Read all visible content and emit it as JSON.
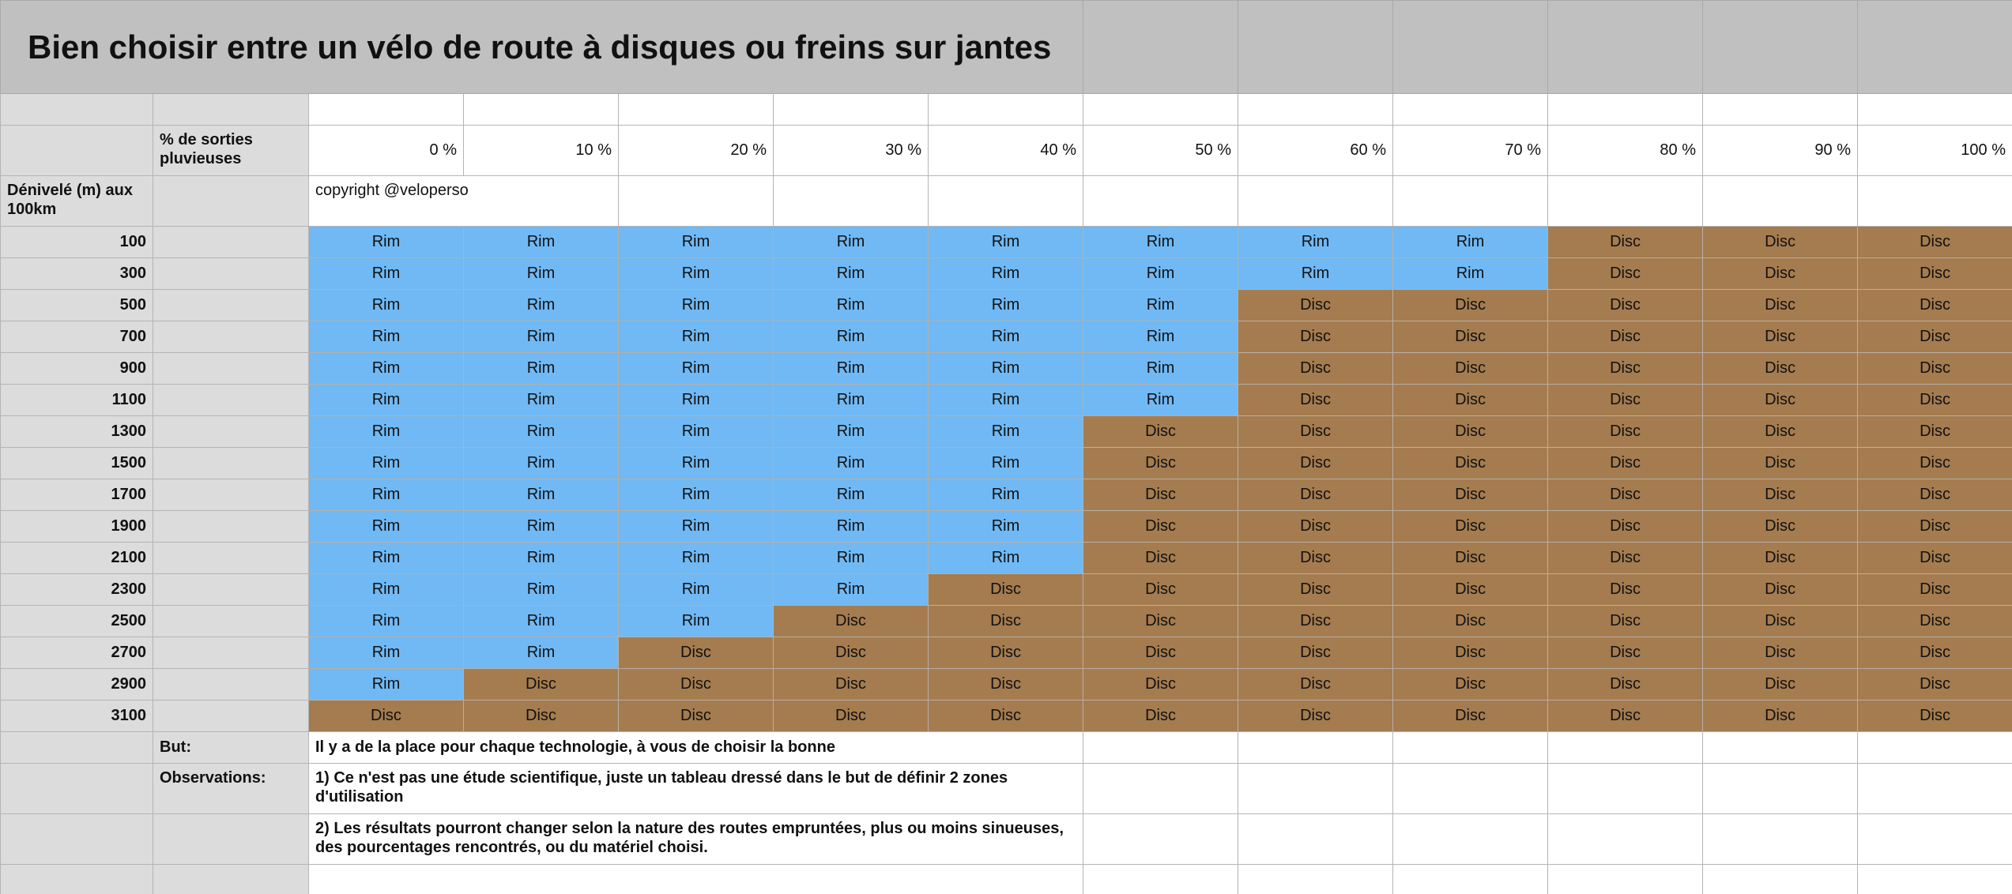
{
  "title": "Bien choisir entre un vélo de route à disques ou freins sur jantes",
  "header": {
    "rain_label": "% de sorties pluvieuses",
    "percentages": [
      "0 %",
      "10 %",
      "20 %",
      "30 %",
      "40 %",
      "50 %",
      "60 %",
      "70 %",
      "80 %",
      "90 %",
      "100 %"
    ]
  },
  "elevation_label": "Dénivelé (m) aux 100km",
  "copyright": "copyright @veloperso",
  "cell_colors": {
    "Rim": "#70b9f4",
    "Disc": "#a57c4f"
  },
  "rows": [
    {
      "elevation": 100,
      "cells": [
        "Rim",
        "Rim",
        "Rim",
        "Rim",
        "Rim",
        "Rim",
        "Rim",
        "Rim",
        "Disc",
        "Disc",
        "Disc"
      ]
    },
    {
      "elevation": 300,
      "cells": [
        "Rim",
        "Rim",
        "Rim",
        "Rim",
        "Rim",
        "Rim",
        "Rim",
        "Rim",
        "Disc",
        "Disc",
        "Disc"
      ]
    },
    {
      "elevation": 500,
      "cells": [
        "Rim",
        "Rim",
        "Rim",
        "Rim",
        "Rim",
        "Rim",
        "Disc",
        "Disc",
        "Disc",
        "Disc",
        "Disc"
      ]
    },
    {
      "elevation": 700,
      "cells": [
        "Rim",
        "Rim",
        "Rim",
        "Rim",
        "Rim",
        "Rim",
        "Disc",
        "Disc",
        "Disc",
        "Disc",
        "Disc"
      ]
    },
    {
      "elevation": 900,
      "cells": [
        "Rim",
        "Rim",
        "Rim",
        "Rim",
        "Rim",
        "Rim",
        "Disc",
        "Disc",
        "Disc",
        "Disc",
        "Disc"
      ]
    },
    {
      "elevation": 1100,
      "cells": [
        "Rim",
        "Rim",
        "Rim",
        "Rim",
        "Rim",
        "Rim",
        "Disc",
        "Disc",
        "Disc",
        "Disc",
        "Disc"
      ]
    },
    {
      "elevation": 1300,
      "cells": [
        "Rim",
        "Rim",
        "Rim",
        "Rim",
        "Rim",
        "Disc",
        "Disc",
        "Disc",
        "Disc",
        "Disc",
        "Disc"
      ]
    },
    {
      "elevation": 1500,
      "cells": [
        "Rim",
        "Rim",
        "Rim",
        "Rim",
        "Rim",
        "Disc",
        "Disc",
        "Disc",
        "Disc",
        "Disc",
        "Disc"
      ]
    },
    {
      "elevation": 1700,
      "cells": [
        "Rim",
        "Rim",
        "Rim",
        "Rim",
        "Rim",
        "Disc",
        "Disc",
        "Disc",
        "Disc",
        "Disc",
        "Disc"
      ]
    },
    {
      "elevation": 1900,
      "cells": [
        "Rim",
        "Rim",
        "Rim",
        "Rim",
        "Rim",
        "Disc",
        "Disc",
        "Disc",
        "Disc",
        "Disc",
        "Disc"
      ]
    },
    {
      "elevation": 2100,
      "cells": [
        "Rim",
        "Rim",
        "Rim",
        "Rim",
        "Rim",
        "Disc",
        "Disc",
        "Disc",
        "Disc",
        "Disc",
        "Disc"
      ]
    },
    {
      "elevation": 2300,
      "cells": [
        "Rim",
        "Rim",
        "Rim",
        "Rim",
        "Disc",
        "Disc",
        "Disc",
        "Disc",
        "Disc",
        "Disc",
        "Disc"
      ]
    },
    {
      "elevation": 2500,
      "cells": [
        "Rim",
        "Rim",
        "Rim",
        "Disc",
        "Disc",
        "Disc",
        "Disc",
        "Disc",
        "Disc",
        "Disc",
        "Disc"
      ]
    },
    {
      "elevation": 2700,
      "cells": [
        "Rim",
        "Rim",
        "Disc",
        "Disc",
        "Disc",
        "Disc",
        "Disc",
        "Disc",
        "Disc",
        "Disc",
        "Disc"
      ]
    },
    {
      "elevation": 2900,
      "cells": [
        "Rim",
        "Disc",
        "Disc",
        "Disc",
        "Disc",
        "Disc",
        "Disc",
        "Disc",
        "Disc",
        "Disc",
        "Disc"
      ]
    },
    {
      "elevation": 3100,
      "cells": [
        "Disc",
        "Disc",
        "Disc",
        "Disc",
        "Disc",
        "Disc",
        "Disc",
        "Disc",
        "Disc",
        "Disc",
        "Disc"
      ]
    }
  ],
  "goal": {
    "label": "But:",
    "text": "Il y a de la place pour chaque technologie, à vous de choisir la bonne"
  },
  "observations": {
    "label": "Observations:",
    "items": [
      "1) Ce n'est pas une étude scientifique, juste un tableau dressé dans le but de définir 2 zones d'utilisation",
      "2) Les résultats pourront changer selon la nature des routes empruntées, plus ou moins sinueuses, des pourcentages rencontrés, ou du matériel choisi."
    ]
  }
}
